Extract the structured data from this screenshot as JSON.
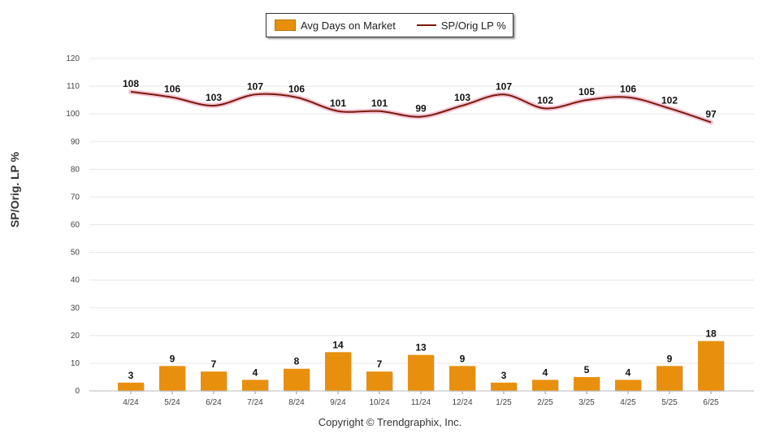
{
  "legend": {
    "bar_label": "Avg Days on Market",
    "line_label": "SP/Orig LP %"
  },
  "footer": {
    "copyright": "Copyright © Trendgraphix, Inc."
  },
  "colors": {
    "bar": "#E8900E",
    "line": "#7B1A0B",
    "grid": "#e6e6e6"
  },
  "chart_data": {
    "type": "bar",
    "title": "",
    "xlabel": "",
    "ylabel": "SP/Orig. LP %",
    "ylim": [
      0,
      120
    ],
    "yticks": [
      0,
      10,
      20,
      30,
      40,
      50,
      60,
      70,
      80,
      90,
      100,
      110,
      120
    ],
    "grid": true,
    "legend_position": "top-center",
    "categories": [
      "4/24",
      "5/24",
      "6/24",
      "7/24",
      "8/24",
      "9/24",
      "10/24",
      "11/24",
      "12/24",
      "1/25",
      "2/25",
      "3/25",
      "4/25",
      "5/25",
      "6/25"
    ],
    "series": [
      {
        "name": "Avg Days on Market",
        "type": "bar",
        "values": [
          3,
          9,
          7,
          4,
          8,
          14,
          7,
          13,
          9,
          3,
          4,
          5,
          4,
          9,
          18
        ]
      },
      {
        "name": "SP/Orig LP %",
        "type": "line",
        "values": [
          108,
          106,
          103,
          107,
          106,
          101,
          101,
          99,
          103,
          107,
          102,
          105,
          106,
          102,
          97
        ]
      }
    ]
  }
}
